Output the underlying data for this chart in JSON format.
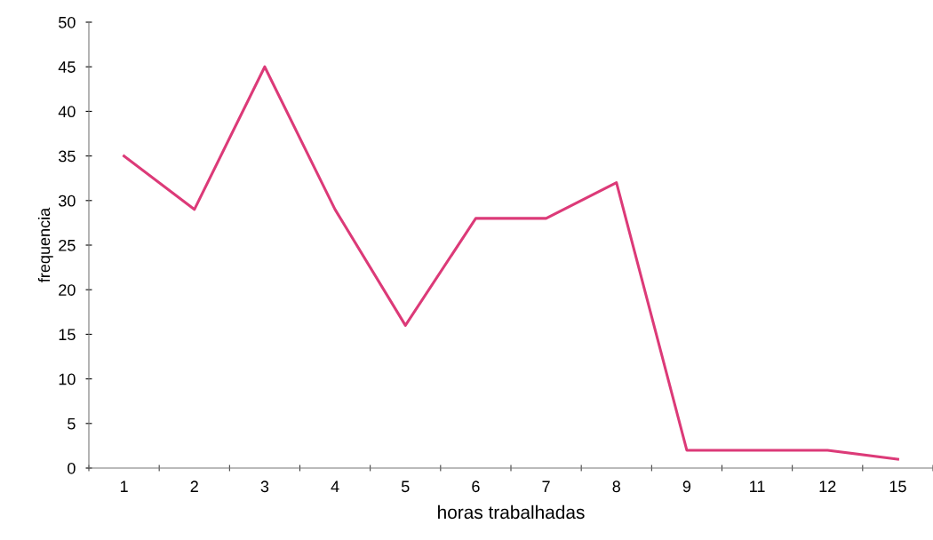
{
  "chart_data": {
    "type": "line",
    "xlabel": "horas trabalhadas",
    "ylabel": "frequencia",
    "categories": [
      "1",
      "2",
      "3",
      "4",
      "5",
      "6",
      "7",
      "8",
      "9",
      "11",
      "12",
      "15"
    ],
    "series": [
      {
        "color": "#dc3a78",
        "values": [
          35,
          29,
          45,
          29,
          16,
          28,
          28,
          32,
          2,
          2,
          2,
          1
        ]
      }
    ],
    "ylim": [
      0,
      50
    ],
    "yticks": [
      0,
      5,
      10,
      15,
      20,
      25,
      30,
      35,
      40,
      45,
      50
    ],
    "grid": false,
    "legend": false,
    "marker": "none",
    "line_style": "solid"
  }
}
